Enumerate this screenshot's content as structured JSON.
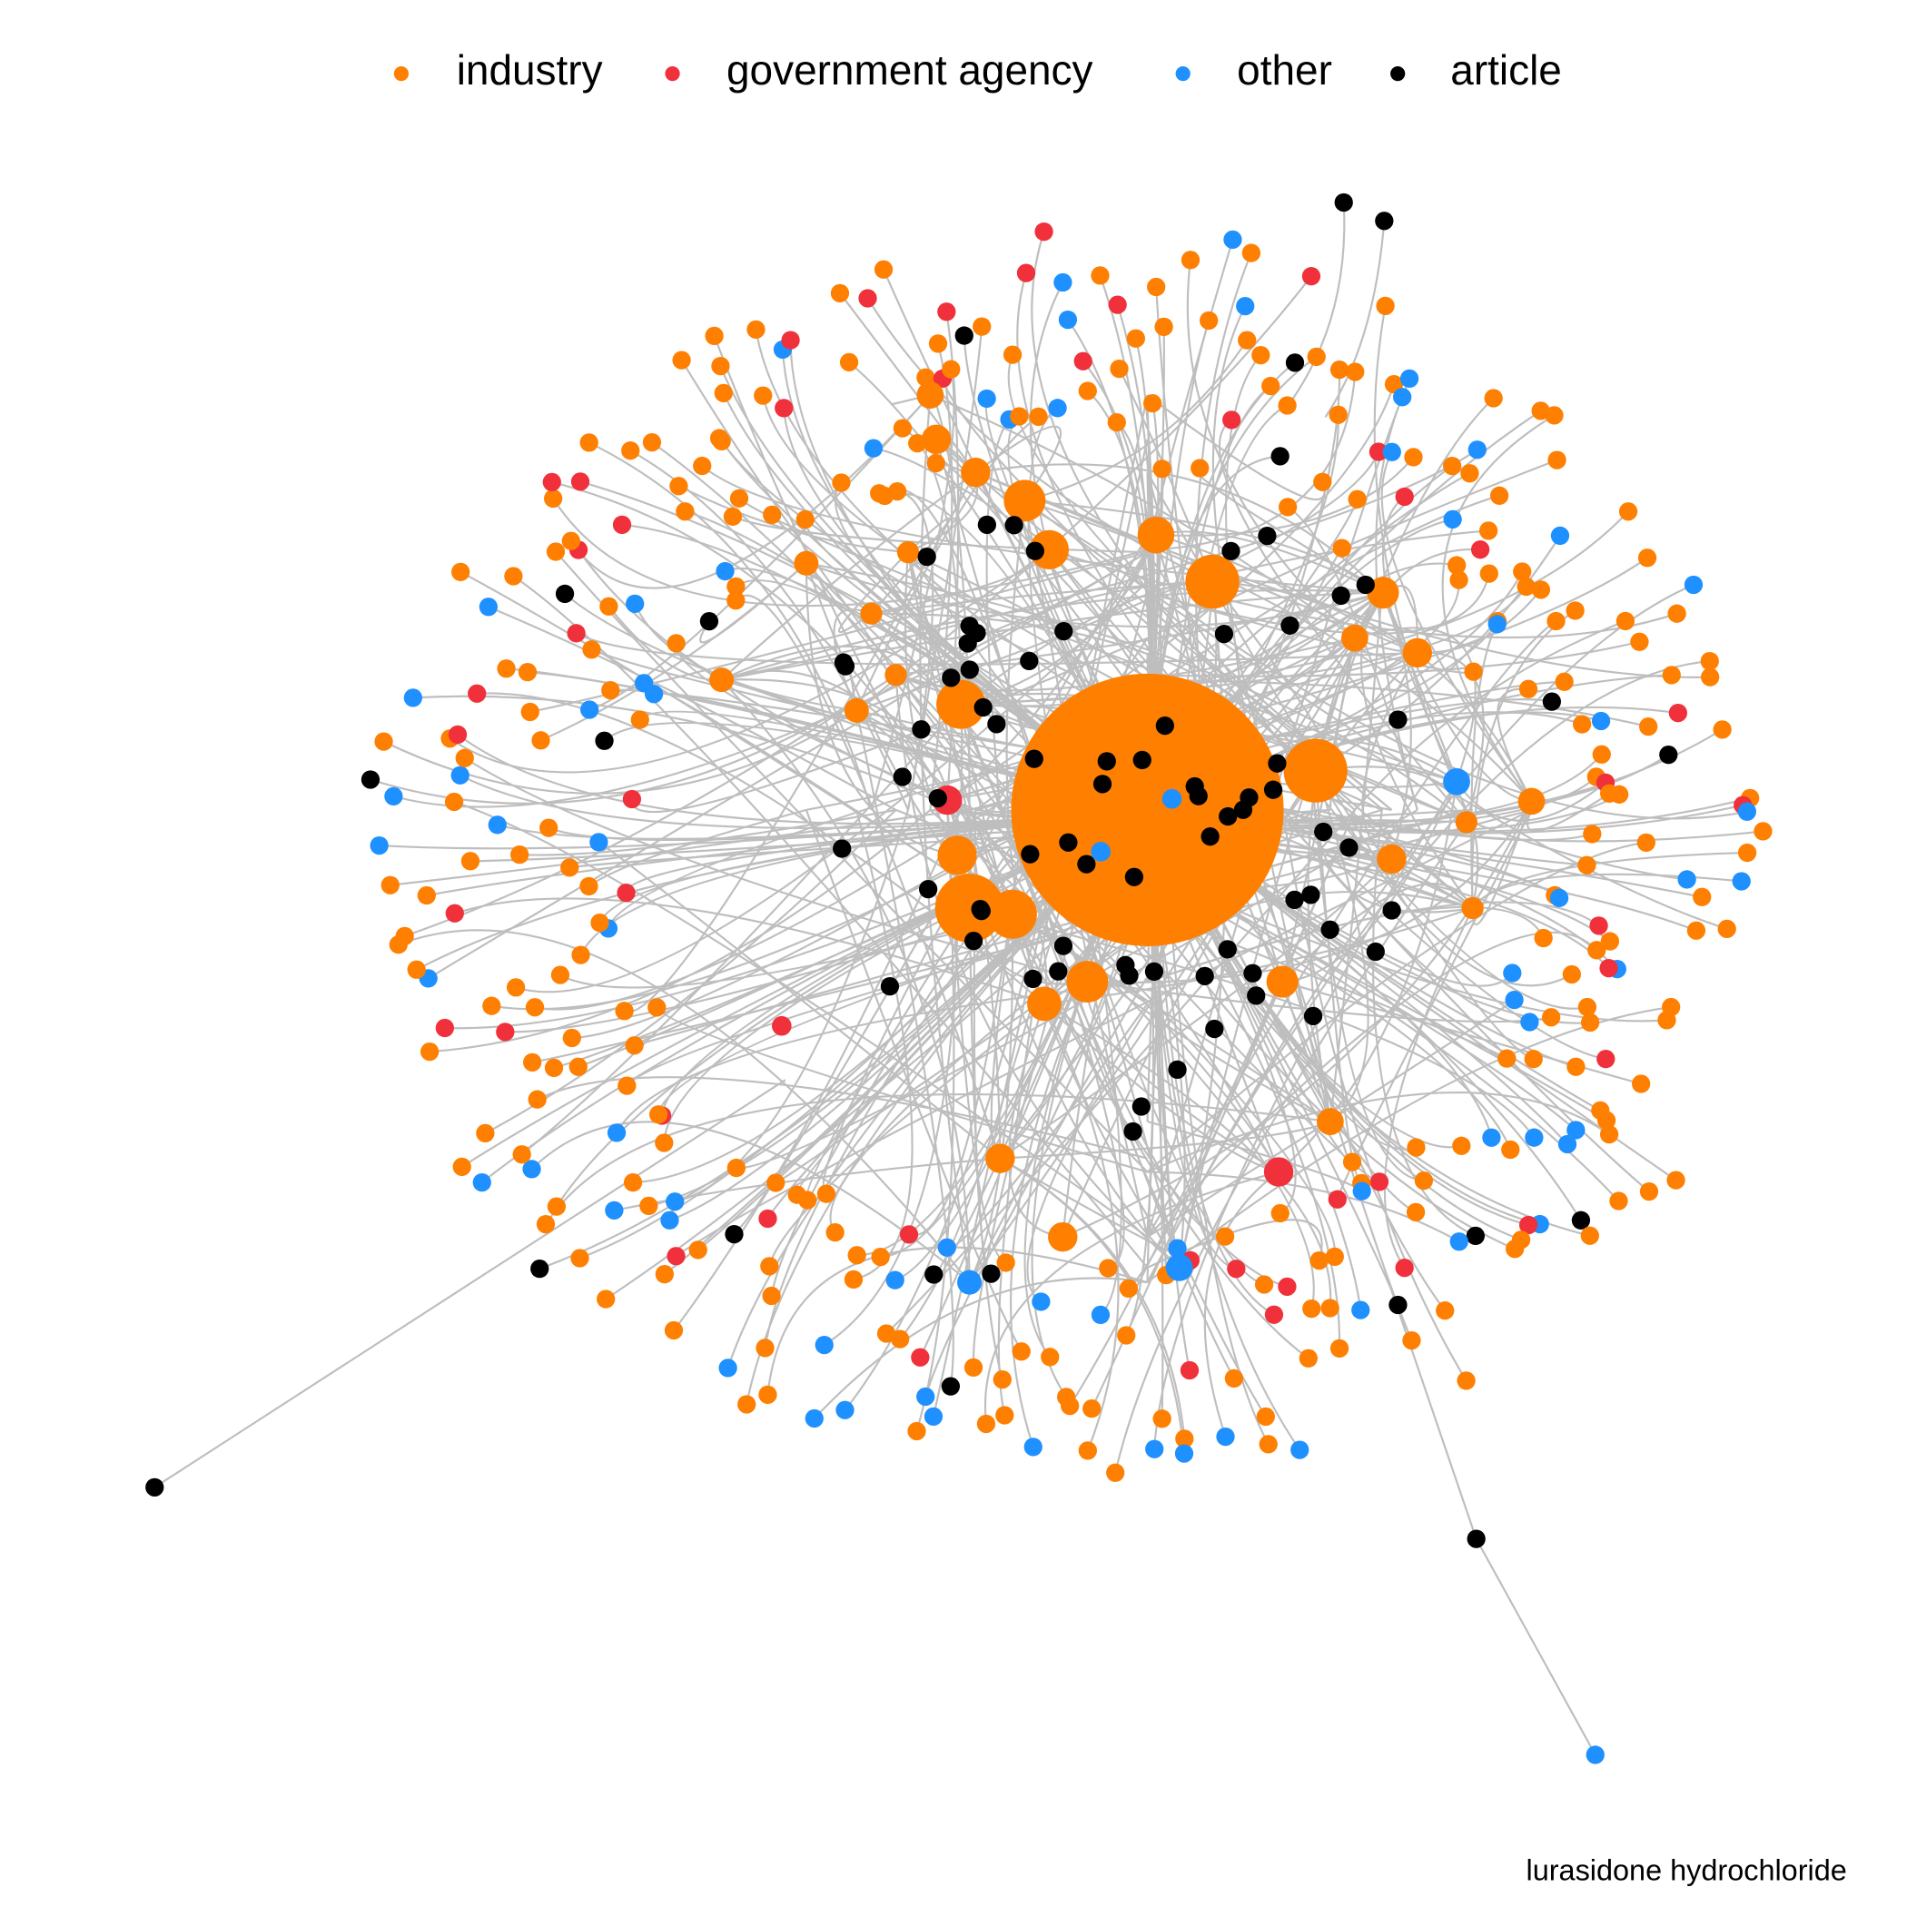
{
  "legend": {
    "items": [
      {
        "name": "industry",
        "color": "#ff7f00"
      },
      {
        "name": "government agency",
        "color": "#f0303a"
      },
      {
        "name": "other",
        "color": "#1e90ff"
      },
      {
        "name": "article",
        "color": "#000000"
      }
    ]
  },
  "caption": "lurasidone hydrochloride"
}
